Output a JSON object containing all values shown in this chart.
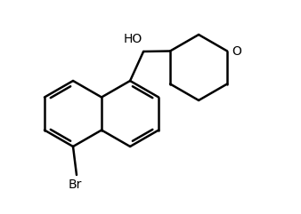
{
  "bg_color": "#ffffff",
  "line_color": "#000000",
  "line_width": 1.8,
  "font_size_label": 10,
  "HO_label": "HO",
  "O_label": "O",
  "Br_label": "Br",
  "figsize": [
    3.38,
    2.41
  ],
  "dpi": 100
}
